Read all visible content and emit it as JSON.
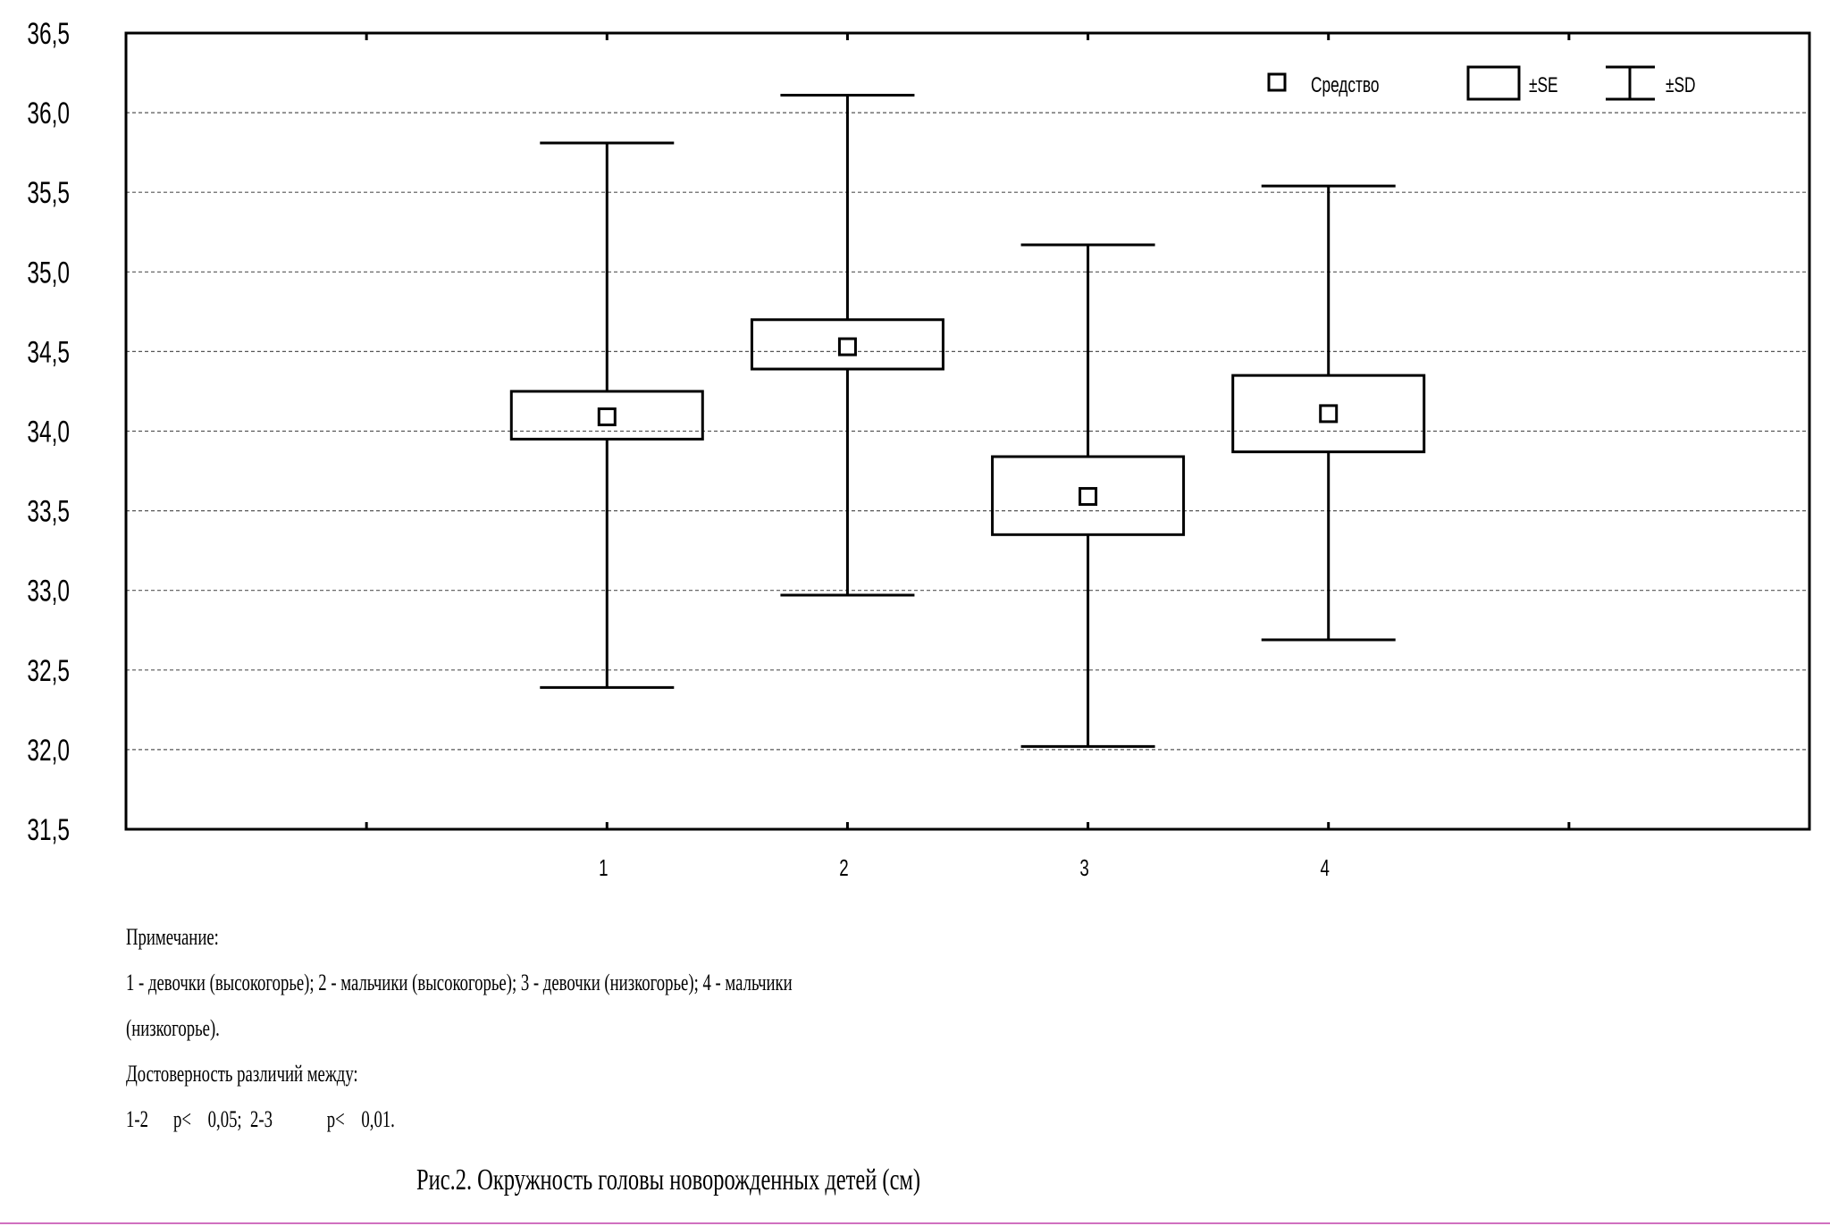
{
  "chart_data": {
    "type": "boxplot",
    "categories": [
      "1",
      "2",
      "3",
      "4"
    ],
    "series": [
      {
        "category": "1",
        "mean": 34.09,
        "se_low": 33.95,
        "se_high": 34.25,
        "sd_low": 32.39,
        "sd_high": 35.81
      },
      {
        "category": "2",
        "mean": 34.53,
        "se_low": 34.39,
        "se_high": 34.7,
        "sd_low": 32.97,
        "sd_high": 36.11
      },
      {
        "category": "3",
        "mean": 33.59,
        "se_low": 33.35,
        "se_high": 33.84,
        "sd_low": 32.02,
        "sd_high": 35.17
      },
      {
        "category": "4",
        "mean": 34.11,
        "se_low": 33.87,
        "se_high": 34.35,
        "sd_low": 32.69,
        "sd_high": 35.54
      }
    ],
    "ylim": [
      31.5,
      36.5
    ],
    "xlim": [
      -1,
      6
    ],
    "yticks": [
      "31,5",
      "32,0",
      "32,5",
      "33,0",
      "33,5",
      "34,0",
      "34,5",
      "35,0",
      "35,5",
      "36,0",
      "36,5"
    ],
    "grid": true,
    "legend": {
      "position": "top-right",
      "mean_label": "Средство",
      "se_label": "±SE",
      "sd_label": "±SD"
    }
  },
  "notes": {
    "heading": "Примечание:",
    "line1": "1 - девочки (высокогорье); 2 - мальчики (высокогорье); 3 - девочки (низкогорье); 4 - мальчики",
    "line2": "(низкогорье).",
    "significance_heading": "Достоверность различий между:",
    "significance": "1-2      p<    0,05;  2-3             p<    0,01."
  },
  "caption": "Рис.2. Окружность головы новорожденных детей (см)"
}
